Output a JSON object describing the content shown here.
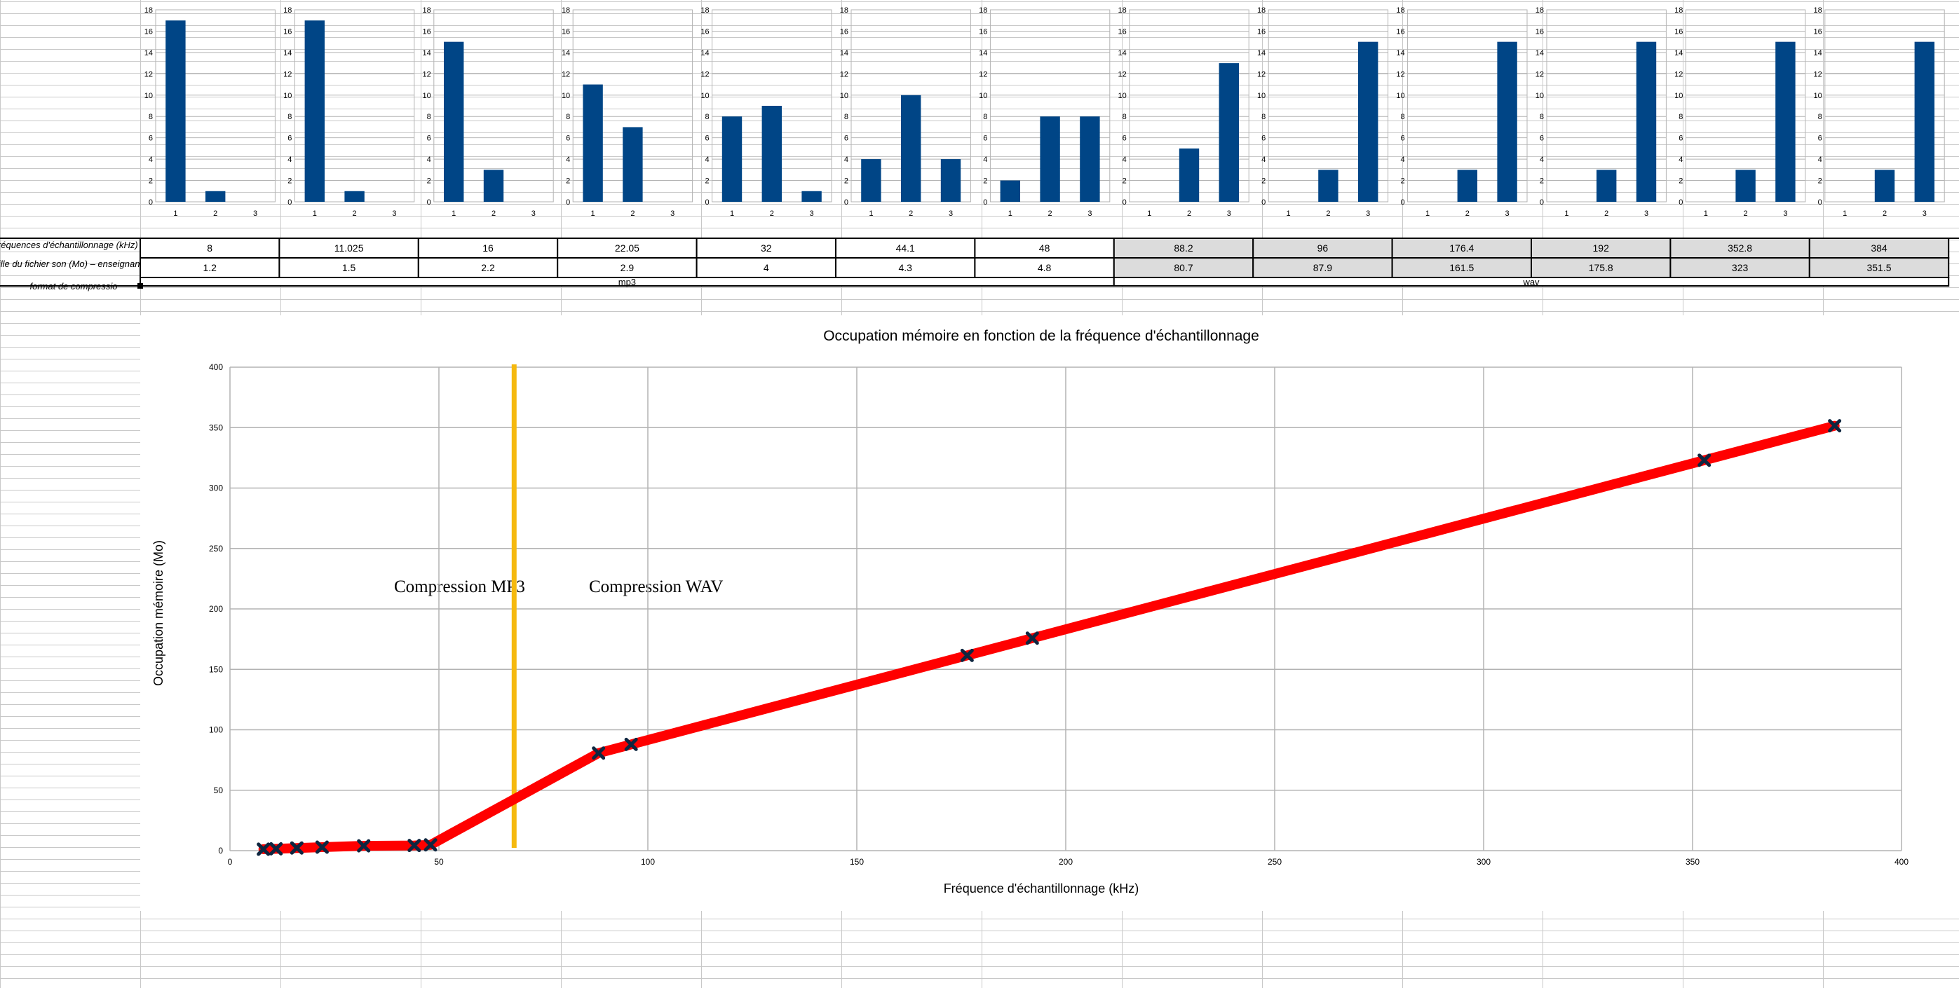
{
  "table": {
    "row_headers": [
      "fréquences d'échantillonnage (kHz)",
      "taille du fichier son (Mo) – enseignant",
      "format de compressio"
    ],
    "frequencies": [
      "8",
      "11.025",
      "16",
      "22.05",
      "32",
      "44.1",
      "48",
      "88.2",
      "96",
      "176.4",
      "192",
      "352.8",
      "384"
    ],
    "sizes": [
      "1.2",
      "1.5",
      "2.2",
      "2.9",
      "4",
      "4.3",
      "4.8",
      "80.7",
      "87.9",
      "161.5",
      "175.8",
      "323",
      "351.5"
    ],
    "formats": [
      {
        "label": "mp3",
        "span": 7
      },
      {
        "label": "wav",
        "span": 6
      }
    ],
    "shaded_fill": "#dcdcdc"
  },
  "chart_data": [
    {
      "type": "line",
      "title": "Occupation mémoire en fonction de la fréquence d'échantillonnage",
      "xlabel": "Fréquence d'échantillonnage (kHz)",
      "ylabel": "Occupation mémoire (Mo)",
      "xlim": [
        0,
        400
      ],
      "ylim": [
        0,
        400
      ],
      "xticks": [
        0,
        50,
        100,
        150,
        200,
        250,
        300,
        350,
        400
      ],
      "yticks": [
        0,
        50,
        100,
        150,
        200,
        250,
        300,
        350,
        400
      ],
      "grid": true,
      "series": [
        {
          "x": [
            8,
            11.025,
            16,
            22.05,
            32,
            44.1,
            48,
            88.2,
            96,
            176.4,
            192,
            352.8,
            384
          ],
          "y": [
            1.2,
            1.5,
            2.2,
            2.9,
            4,
            4.3,
            4.8,
            80.7,
            87.9,
            161.5,
            175.8,
            323,
            351.5
          ],
          "color": "#ff0000",
          "marker": "x",
          "marker_color": "#0e2640"
        }
      ],
      "vertical_line": {
        "x": 68,
        "color": "#f5b90f"
      },
      "annotations": [
        "Compression MP3",
        "Compression WAV"
      ]
    },
    {
      "type": "bar",
      "categories": [
        "1",
        "2",
        "3"
      ],
      "ylim": [
        0,
        18
      ],
      "yticks": [
        0,
        2,
        4,
        6,
        8,
        10,
        12,
        14,
        16,
        18
      ],
      "grid": true,
      "color": "#004586",
      "values_per_chart": [
        [
          17,
          1,
          0
        ],
        [
          17,
          1,
          0
        ],
        [
          15,
          3,
          0
        ],
        [
          11,
          7,
          0
        ],
        [
          8,
          9,
          1
        ],
        [
          4,
          10,
          4
        ],
        [
          2,
          8,
          8
        ],
        [
          0,
          5,
          13
        ],
        [
          0,
          3,
          15
        ],
        [
          0,
          3,
          15
        ],
        [
          0,
          3,
          15
        ],
        [
          0,
          3,
          15
        ],
        [
          0,
          3,
          15
        ]
      ]
    }
  ]
}
